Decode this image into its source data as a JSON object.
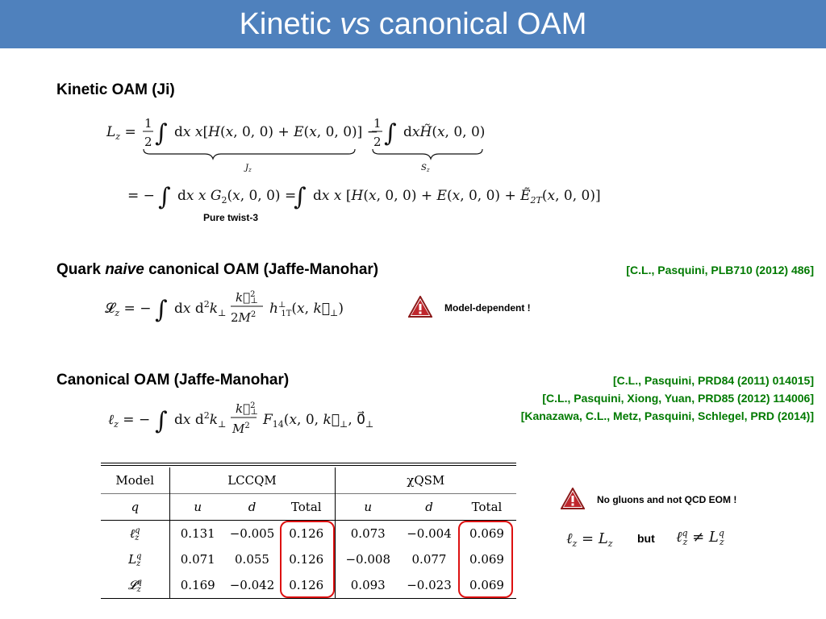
{
  "title": {
    "pre": "Kinetic ",
    "vs": "vs",
    "post": " canonical OAM"
  },
  "sections": {
    "kinetic": "Kinetic OAM (Ji)",
    "naive_pre": "Quark ",
    "naive_em": "naive",
    "naive_post": " canonical OAM (Jaffe-Manohar)",
    "canonical": "Canonical OAM (Jaffe-Manohar)"
  },
  "notes": {
    "twist": "Pure twist-3",
    "model_dependent": "Model-dependent !",
    "no_gluons": "No gluons and not QCD EOM !",
    "but": "but"
  },
  "refs": {
    "naive": "[C.L., Pasquini, PLB710 (2012) 486]",
    "canonical": [
      "[C.L., Pasquini, PRD84 (2011) 014015]",
      "[C.L., Pasquini, Xiong, Yuan, PRD85 (2012) 114006]",
      "[Kanazawa, C.L., Metz, Pasquini, Schlegel, PRD (2014)]"
    ]
  },
  "colors": {
    "header": "#4f81bd",
    "refs": "#007a00",
    "highlight": "#d11111"
  },
  "table": {
    "model_label": "Model",
    "models": [
      "LCCQM",
      "χQSM"
    ],
    "q_label": "q",
    "cols": [
      "u",
      "d",
      "Total",
      "u",
      "d",
      "Total"
    ],
    "rows": [
      {
        "label": "ℓ",
        "sup": "q",
        "sub": "z",
        "values": [
          "0.131",
          "−0.005",
          "0.126",
          "0.073",
          "−0.004",
          "0.069"
        ]
      },
      {
        "label": "L",
        "sup": "q",
        "sub": "z",
        "values": [
          "0.071",
          "0.055",
          "0.126",
          "−0.008",
          "0.077",
          "0.069"
        ]
      },
      {
        "label": "𝓛",
        "sup": "q",
        "sub": "z",
        "values": [
          "0.169",
          "−0.042",
          "0.126",
          "0.093",
          "−0.023",
          "0.069"
        ]
      }
    ]
  }
}
